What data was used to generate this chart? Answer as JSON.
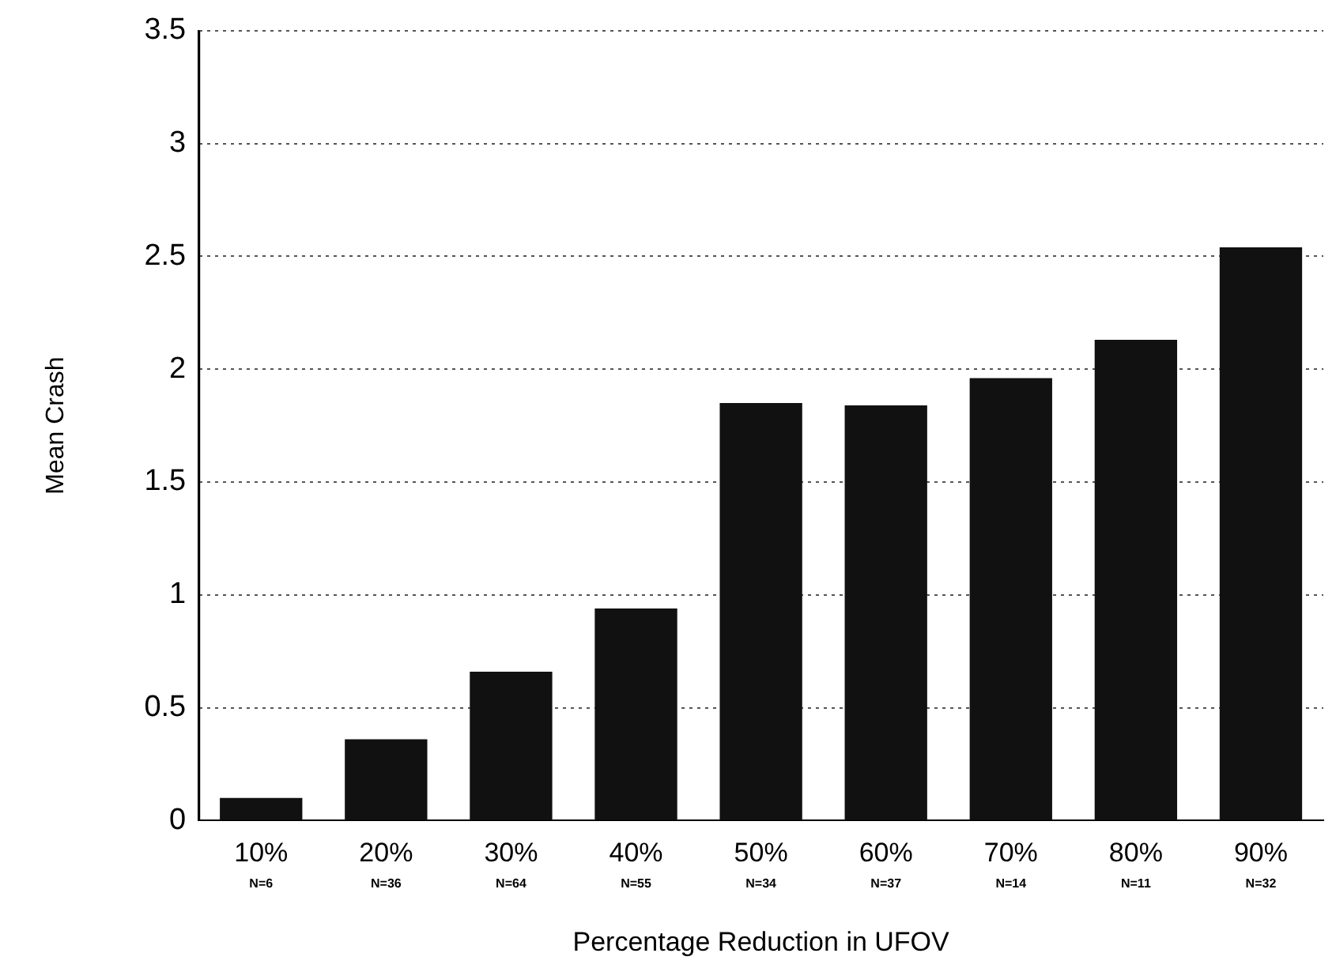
{
  "chart_data": {
    "type": "bar",
    "xlabel": "Percentage Reduction in UFOV",
    "ylabel": "Mean Crash",
    "categories": [
      "10%",
      "20%",
      "30%",
      "40%",
      "50%",
      "60%",
      "70%",
      "80%",
      "90%"
    ],
    "values": [
      0.1,
      0.36,
      0.66,
      0.94,
      1.85,
      1.84,
      1.96,
      2.13,
      2.54
    ],
    "color": "#111111",
    "ylim": [
      0,
      3.5
    ],
    "yticks": [
      0,
      0.5,
      1,
      1.5,
      2,
      2.5,
      3,
      3.5
    ],
    "grid": "y",
    "legend": false,
    "annotations": [
      "N=6",
      "N=36",
      "N=64",
      "N=55",
      "N=34",
      "N=37",
      "N=14",
      "N=11",
      "N=32"
    ]
  }
}
